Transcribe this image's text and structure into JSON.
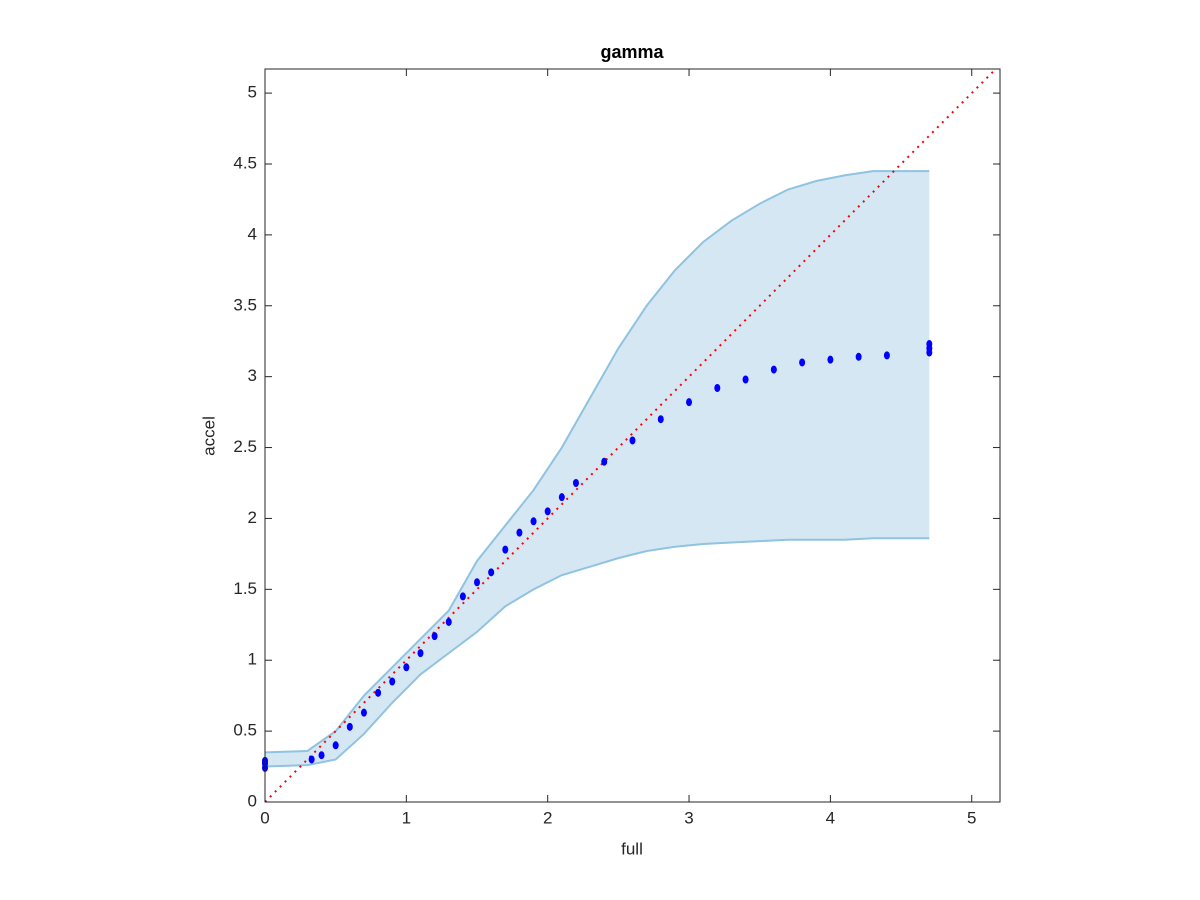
{
  "chart_data": {
    "type": "scatter",
    "title": "gamma",
    "x_label": "full",
    "y_label": "accel",
    "xlim": [
      0,
      5.2
    ],
    "ylim": [
      0,
      5.17
    ],
    "xticks": [
      0,
      1,
      2,
      3,
      4,
      5
    ],
    "yticks": [
      0,
      0.5,
      1,
      1.5,
      2,
      2.5,
      3,
      3.5,
      4,
      4.5,
      5
    ],
    "points": {
      "color": "#0000ff",
      "x": [
        0,
        0,
        0,
        0.33,
        0.4,
        0.5,
        0.6,
        0.7,
        0.8,
        0.9,
        1.0,
        1.1,
        1.2,
        1.3,
        1.4,
        1.5,
        1.6,
        1.7,
        1.8,
        1.9,
        2.0,
        2.1,
        2.2,
        2.4,
        2.6,
        2.8,
        3.0,
        3.2,
        3.4,
        3.6,
        3.8,
        4.0,
        4.2,
        4.4,
        4.7,
        4.7,
        4.7
      ],
      "y": [
        0.24,
        0.27,
        0.29,
        0.3,
        0.33,
        0.4,
        0.53,
        0.63,
        0.77,
        0.85,
        0.95,
        1.05,
        1.17,
        1.27,
        1.45,
        1.55,
        1.62,
        1.78,
        1.9,
        1.98,
        2.05,
        2.15,
        2.25,
        2.4,
        2.55,
        2.7,
        2.82,
        2.92,
        2.98,
        3.05,
        3.1,
        3.12,
        3.14,
        3.15,
        3.17,
        3.2,
        3.23
      ]
    },
    "band": {
      "fill": "#d6e7f4",
      "edge": "#8fc3e0",
      "x": [
        0,
        0.3,
        0.5,
        0.7,
        0.9,
        1.1,
        1.3,
        1.5,
        1.7,
        1.9,
        2.1,
        2.3,
        2.5,
        2.7,
        2.9,
        3.1,
        3.3,
        3.5,
        3.7,
        3.9,
        4.1,
        4.3,
        4.5,
        4.7
      ],
      "upper": [
        0.35,
        0.36,
        0.5,
        0.75,
        0.95,
        1.15,
        1.35,
        1.7,
        1.95,
        2.2,
        2.5,
        2.85,
        3.2,
        3.5,
        3.75,
        3.95,
        4.1,
        4.22,
        4.32,
        4.38,
        4.42,
        4.45,
        4.45,
        4.45
      ],
      "lower": [
        0.25,
        0.26,
        0.3,
        0.48,
        0.7,
        0.9,
        1.05,
        1.2,
        1.38,
        1.5,
        1.6,
        1.66,
        1.72,
        1.77,
        1.8,
        1.82,
        1.83,
        1.84,
        1.85,
        1.85,
        1.85,
        1.86,
        1.86,
        1.86
      ]
    },
    "reference_line": {
      "color": "#ff0000",
      "x": [
        0,
        5.2
      ],
      "y": [
        0,
        5.2
      ]
    }
  }
}
